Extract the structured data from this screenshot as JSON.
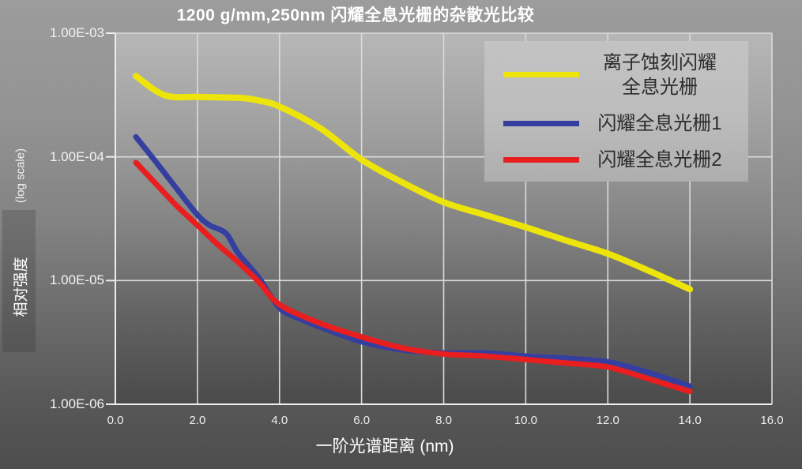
{
  "chart_data": {
    "type": "line",
    "title": "1200 g/mm,250nm 闪耀全息光栅的杂散光比较",
    "xlabel": "一阶光谱距离 (nm)",
    "ylabel": "相对强度",
    "ylabel_note": "(log scale)",
    "xlim": [
      0,
      16
    ],
    "ylim_exp": [
      -6,
      -3
    ],
    "grid": true,
    "legend_position": "top-right",
    "x_ticks": [
      "0.0",
      "2.0",
      "4.0",
      "6.0",
      "8.0",
      "10.0",
      "12.0",
      "14.0",
      "16.0"
    ],
    "y_ticks": [
      "1.00E-03",
      "1.00E-04",
      "1.00E-05",
      "1.00E-06"
    ],
    "series": [
      {
        "name": "离子蚀刻闪耀全息光栅",
        "color": "#ede40c",
        "stroke_width": 8,
        "x": [
          0.5,
          1.2,
          2,
          3,
          3.5,
          4,
          5,
          6,
          7,
          8,
          9,
          10,
          11,
          12,
          13,
          14
        ],
        "y": [
          0.00045,
          0.000315,
          0.000305,
          0.0003,
          0.000285,
          0.000255,
          0.00017,
          9.5e-05,
          6.2e-05,
          4.3e-05,
          3.4e-05,
          2.7e-05,
          2.1e-05,
          1.65e-05,
          1.2e-05,
          8.5e-06
        ]
      },
      {
        "name": "闪耀全息光栅1",
        "color": "#353fa0",
        "stroke_width": 7,
        "x": [
          0.5,
          1,
          1.5,
          2,
          2.3,
          2.7,
          3,
          3.5,
          4,
          4.5,
          5,
          6,
          7,
          8,
          9,
          10,
          11,
          12,
          13,
          14
        ],
        "y": [
          0.000145,
          9e-05,
          5.5e-05,
          3.4e-05,
          2.8e-05,
          2.4e-05,
          1.65e-05,
          1.05e-05,
          6e-06,
          4.9e-06,
          4.2e-06,
          3.2e-06,
          2.75e-06,
          2.6e-06,
          2.6e-06,
          2.45e-06,
          2.35e-06,
          2.2e-06,
          1.8e-06,
          1.4e-06
        ]
      },
      {
        "name": "闪耀全息光栅2",
        "color": "#e81e1f",
        "stroke_width": 7,
        "x": [
          0.5,
          1,
          1.5,
          2,
          2.5,
          3,
          3.5,
          4,
          5,
          6,
          7,
          8,
          9,
          10,
          11,
          12,
          13,
          14
        ],
        "y": [
          9e-05,
          6e-05,
          4e-05,
          2.8e-05,
          1.95e-05,
          1.4e-05,
          9.7e-06,
          6.4e-06,
          4.5e-06,
          3.5e-06,
          2.85e-06,
          2.55e-06,
          2.45e-06,
          2.3e-06,
          2.15e-06,
          2e-06,
          1.6e-06,
          1.27e-06
        ]
      }
    ],
    "legend": [
      {
        "label_lines": [
          "离子蚀刻闪耀",
          "全息光栅"
        ],
        "color": "#ede40c"
      },
      {
        "label_lines": [
          "闪耀全息光栅1"
        ],
        "color": "#353fa0"
      },
      {
        "label_lines": [
          "闪耀全息光栅2"
        ],
        "color": "#e81e1f"
      }
    ],
    "colors": {
      "background_top": "#9c9c9c",
      "background_bottom": "#4d4d4d",
      "gridline": "#d8dcd8",
      "axis": "#ededed",
      "text": "#ffffff",
      "legend_background": "#bcbcbc"
    }
  }
}
